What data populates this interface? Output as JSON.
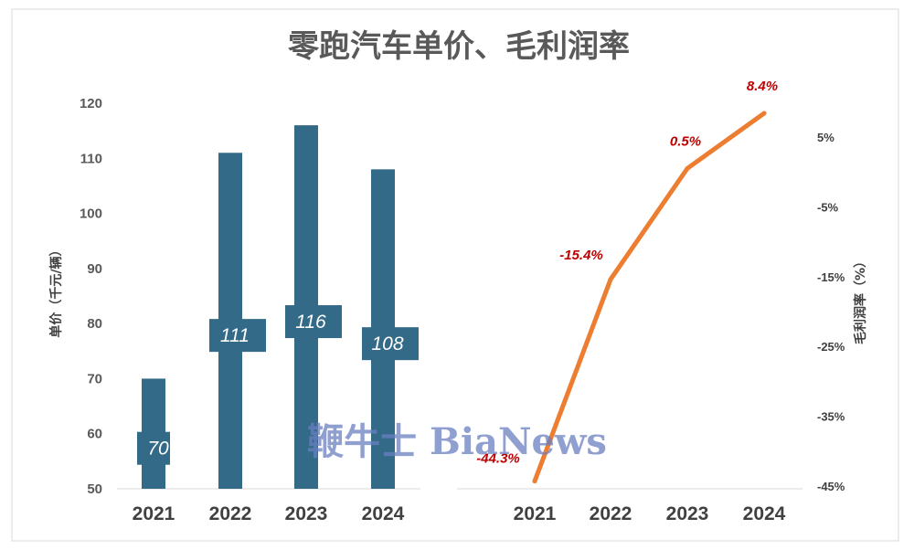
{
  "chart_data": [
    {
      "type": "bar",
      "title": "零跑汽车单价、毛利润率",
      "ylabel": "单价（千元/辆）",
      "ylim": [
        50,
        120
      ],
      "yticks": [
        50,
        60,
        70,
        80,
        90,
        100,
        110,
        120
      ],
      "categories": [
        "2021",
        "2022",
        "2023",
        "2024"
      ],
      "values": [
        70,
        111,
        116,
        108
      ],
      "data_labels": [
        "70",
        "111",
        "116",
        "108"
      ],
      "bar_color": "#326a87",
      "grid": false
    },
    {
      "type": "line",
      "ylabel": "毛利润率（%）",
      "ylim": [
        -45,
        8.4
      ],
      "yticks": [
        "5%",
        "-5%",
        "-15%",
        "-25%",
        "-35%",
        "-45%"
      ],
      "ytick_values": [
        5,
        -5,
        -15,
        -25,
        -35,
        -45
      ],
      "categories": [
        "2021",
        "2022",
        "2023",
        "2024"
      ],
      "values": [
        -44.3,
        -15.4,
        0.5,
        8.4
      ],
      "data_labels": [
        "-44.3%",
        "-15.4%",
        "0.5%",
        "8.4%"
      ],
      "line_color": "#ed7d31",
      "grid": false
    }
  ],
  "watermark": "鞭牛士 BiaNews"
}
